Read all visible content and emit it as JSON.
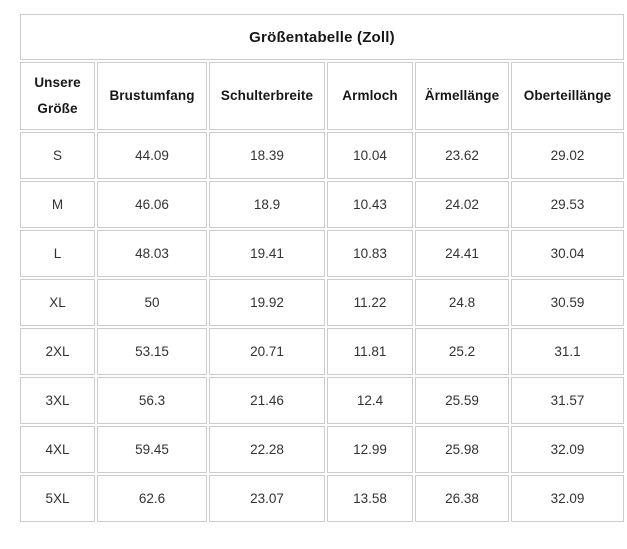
{
  "chart_data": {
    "type": "table",
    "title": "Größentabelle (Zoll)",
    "columns": [
      "Unsere Größe",
      "Brustumfang",
      "Schulterbreite",
      "Armloch",
      "Ärmellänge",
      "Oberteillänge"
    ],
    "rows": [
      [
        "S",
        "44.09",
        "18.39",
        "10.04",
        "23.62",
        "29.02"
      ],
      [
        "M",
        "46.06",
        "18.9",
        "10.43",
        "24.02",
        "29.53"
      ],
      [
        "L",
        "48.03",
        "19.41",
        "10.83",
        "24.41",
        "30.04"
      ],
      [
        "XL",
        "50",
        "19.92",
        "11.22",
        "24.8",
        "30.59"
      ],
      [
        "2XL",
        "53.15",
        "20.71",
        "11.81",
        "25.2",
        "31.1"
      ],
      [
        "3XL",
        "56.3",
        "21.46",
        "12.4",
        "25.59",
        "31.57"
      ],
      [
        "4XL",
        "59.45",
        "22.28",
        "12.99",
        "25.98",
        "32.09"
      ],
      [
        "5XL",
        "62.6",
        "23.07",
        "13.58",
        "26.38",
        "32.09"
      ]
    ],
    "layout": {
      "grid": "all-cell-borders",
      "legend": "none"
    }
  },
  "colors": {
    "border": "#cccccc",
    "title_text": "#171717",
    "header_text": "#171717",
    "body_text": "#333333",
    "background": "#ffffff"
  }
}
